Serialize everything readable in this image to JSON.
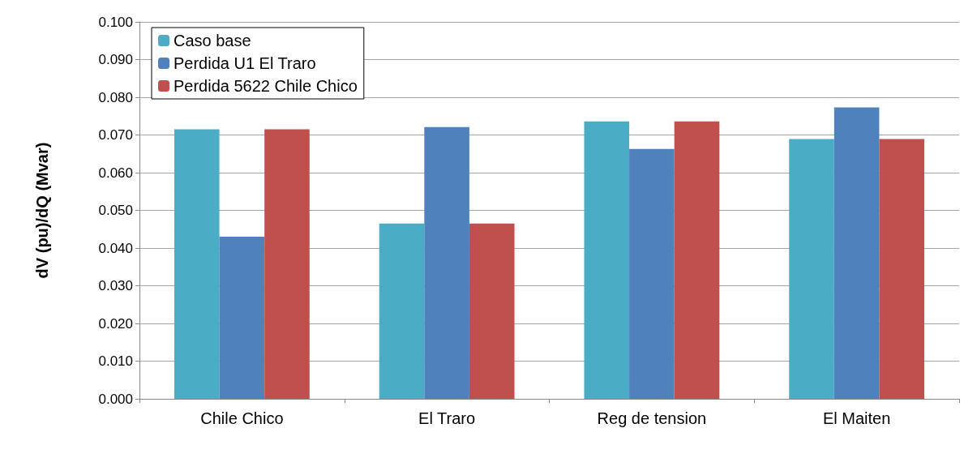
{
  "chart_data": {
    "type": "bar",
    "ylabel": "dV (pu)/dQ (Mvar)",
    "categories": [
      "Chile Chico",
      "El Traro",
      "Reg de tension",
      "El Maiten"
    ],
    "series": [
      {
        "name": "Caso base",
        "color": "#4bacc6",
        "values": [
          0.0715,
          0.0465,
          0.0736,
          0.0689
        ]
      },
      {
        "name": "Perdida U1 El Traro",
        "color": "#4f81bd",
        "values": [
          0.043,
          0.0721,
          0.0663,
          0.0773
        ]
      },
      {
        "name": "Perdida 5622 Chile Chico",
        "color": "#c0504d",
        "values": [
          0.0715,
          0.0465,
          0.0736,
          0.0689
        ]
      }
    ],
    "ylim": [
      0,
      0.1
    ],
    "yticks": [
      {
        "value": 0,
        "label": "0.000"
      },
      {
        "value": 0.01,
        "label": "0.010"
      },
      {
        "value": 0.02,
        "label": "0.020"
      },
      {
        "value": 0.03,
        "label": "0.030"
      },
      {
        "value": 0.04,
        "label": "0.040"
      },
      {
        "value": 0.05,
        "label": "0.050"
      },
      {
        "value": 0.06,
        "label": "0.060"
      },
      {
        "value": 0.07,
        "label": "0.070"
      },
      {
        "value": 0.08,
        "label": "0.080"
      },
      {
        "value": 0.09,
        "label": "0.090"
      },
      {
        "value": 0.1,
        "label": "0.100"
      }
    ],
    "grid": "y",
    "legend": "top left"
  }
}
